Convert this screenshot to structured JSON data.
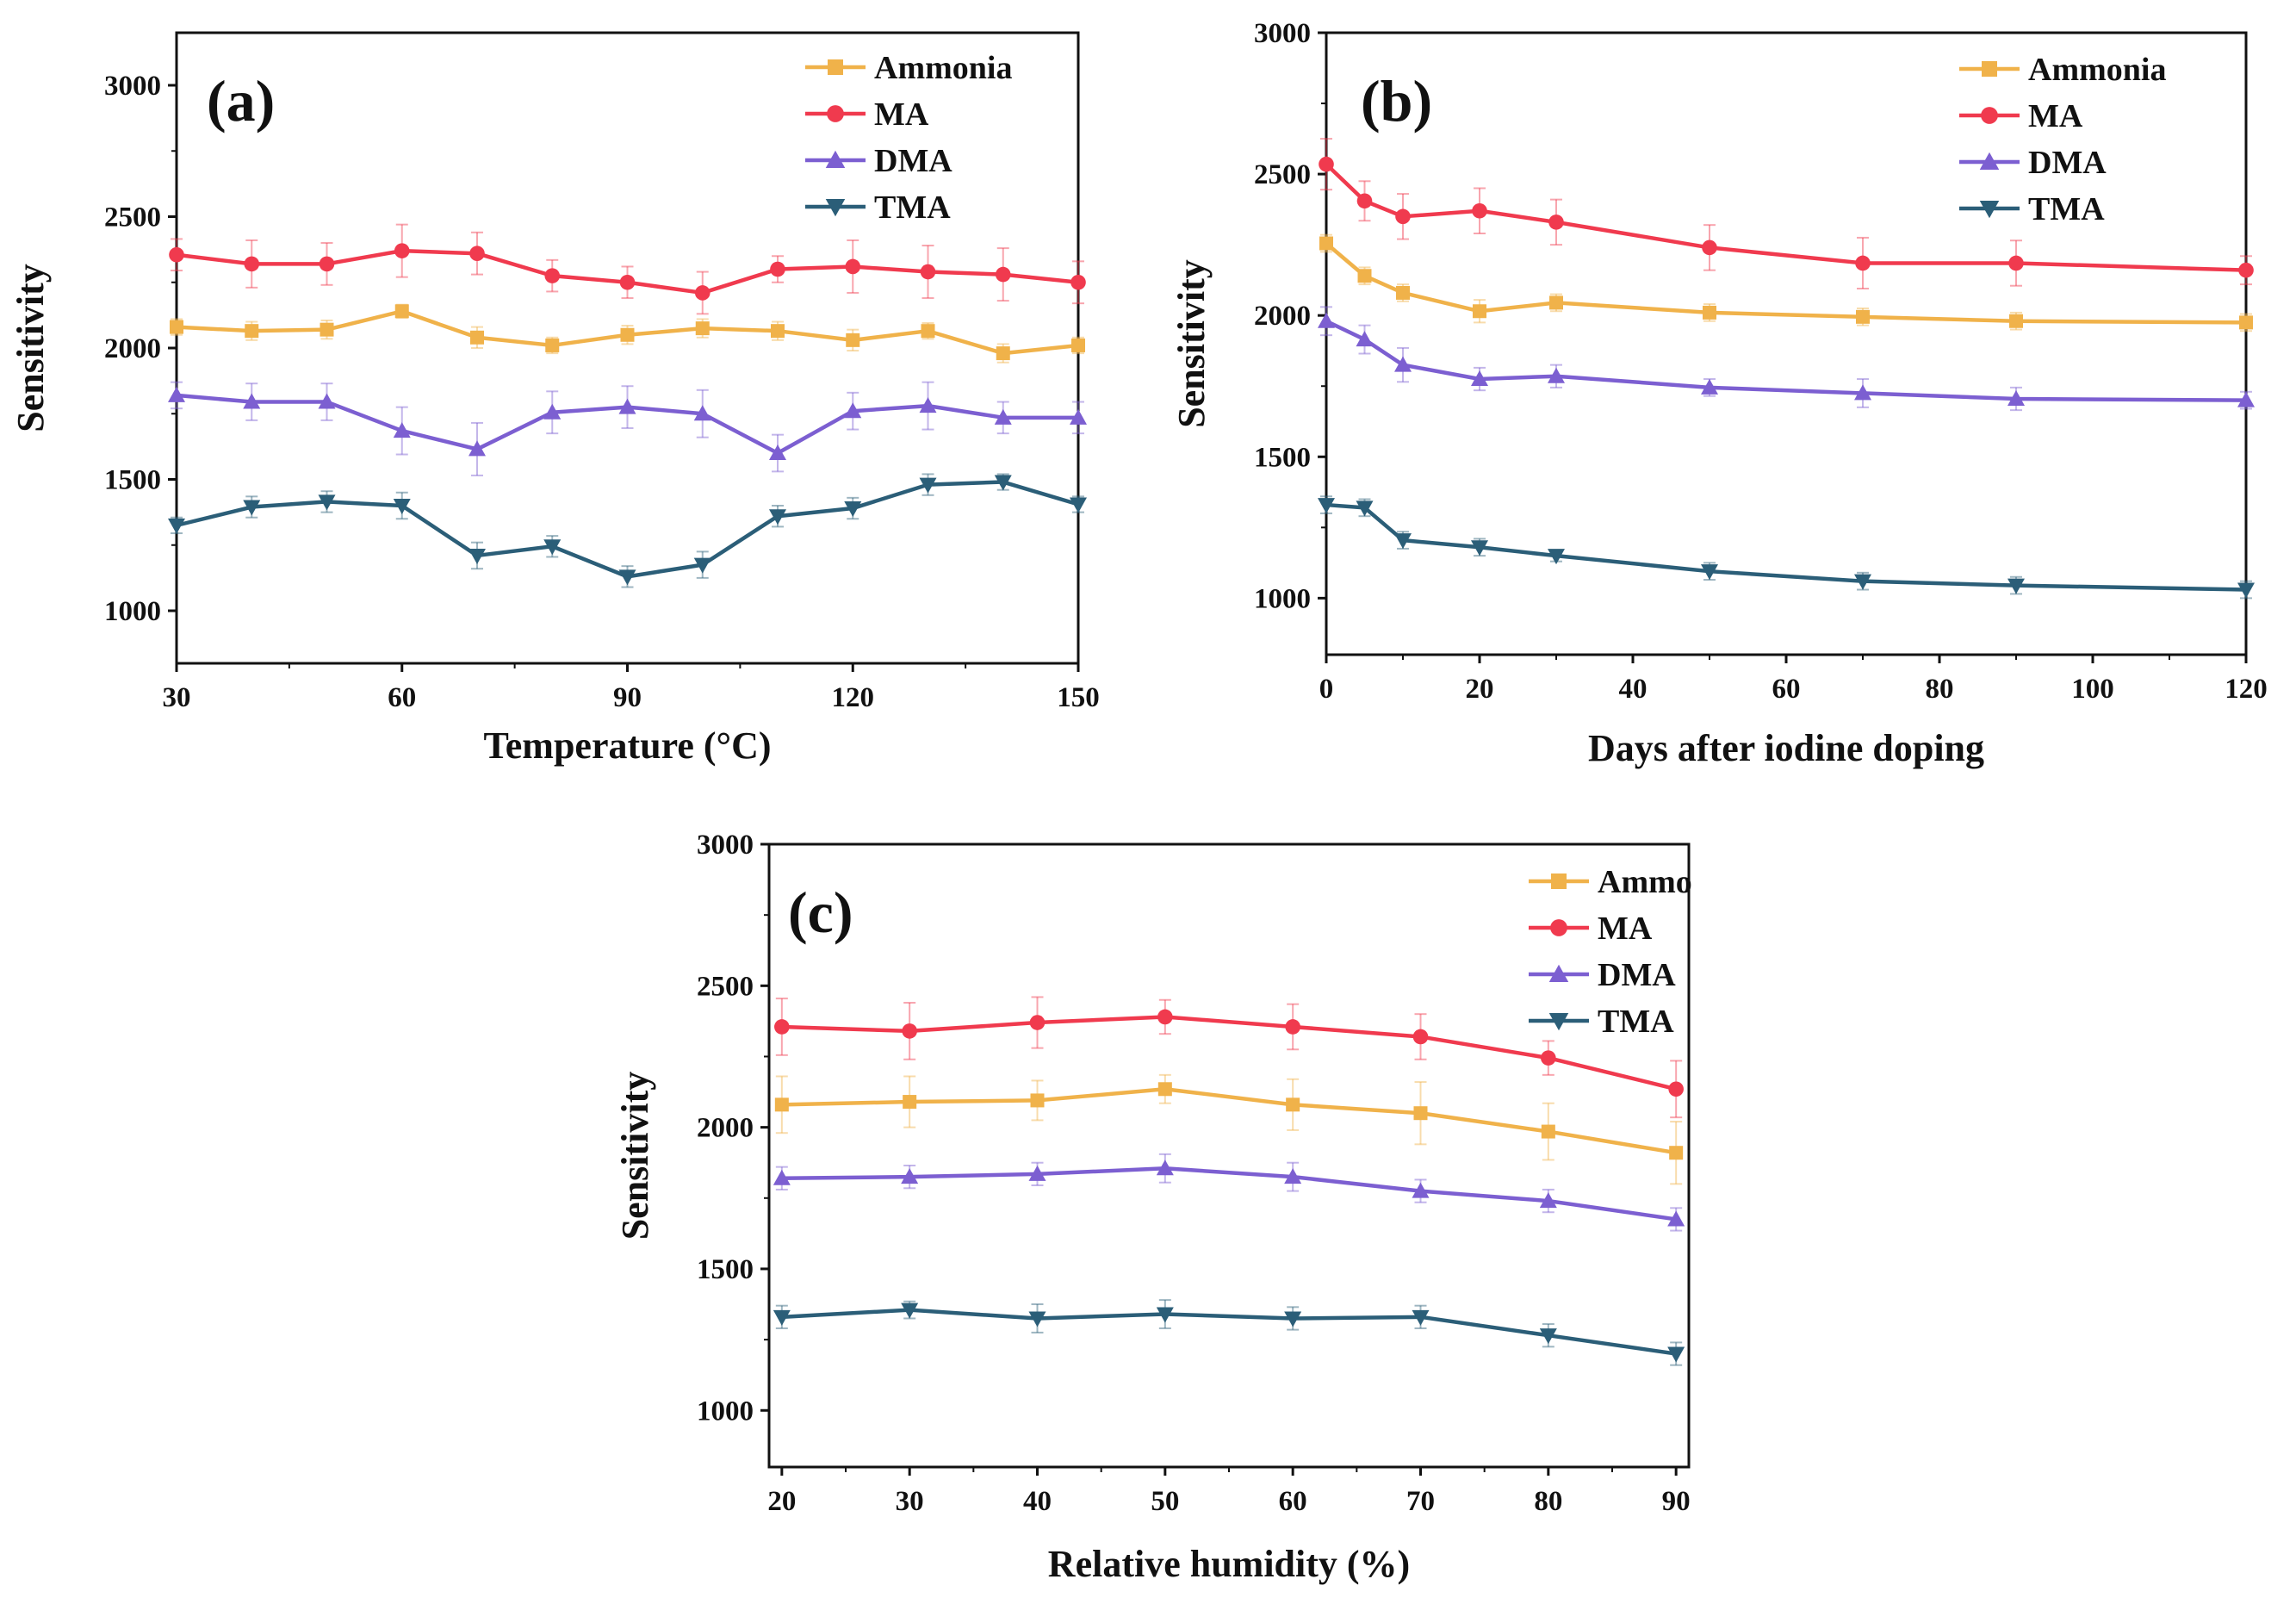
{
  "colors": {
    "Ammonia": "#F0B24A",
    "MA": "#F03A4E",
    "DMA": "#7C5FD1",
    "TMA": "#2B5E78",
    "error_bar_alpha": "0.45"
  },
  "chart_data": [
    {
      "panel_label": "(a)",
      "type": "line",
      "xlabel": "Temperature (°C)",
      "ylabel": "Sensitivity",
      "xlim": [
        30,
        150
      ],
      "ylim": [
        800,
        3200
      ],
      "xticks": [
        30,
        60,
        90,
        120,
        150
      ],
      "yticks": [
        1000,
        1500,
        2000,
        2500,
        3000
      ],
      "x": [
        30,
        40,
        50,
        60,
        70,
        80,
        90,
        100,
        110,
        120,
        130,
        140,
        150
      ],
      "legend_position": "top-right",
      "series": [
        {
          "name": "Ammonia",
          "marker": "square",
          "values": [
            2080,
            2065,
            2070,
            2140,
            2040,
            2010,
            2050,
            2075,
            2065,
            2030,
            2065,
            1980,
            2010
          ],
          "errors": [
            30,
            35,
            35,
            25,
            40,
            30,
            35,
            35,
            35,
            40,
            30,
            35,
            30
          ]
        },
        {
          "name": "MA",
          "marker": "circle",
          "values": [
            2355,
            2320,
            2320,
            2370,
            2360,
            2275,
            2250,
            2210,
            2300,
            2310,
            2290,
            2280,
            2250
          ],
          "errors": [
            60,
            90,
            80,
            100,
            80,
            60,
            60,
            80,
            50,
            100,
            100,
            100,
            80
          ]
        },
        {
          "name": "DMA",
          "marker": "triangle-up",
          "values": [
            1820,
            1795,
            1795,
            1685,
            1615,
            1755,
            1775,
            1750,
            1600,
            1760,
            1780,
            1735,
            1735
          ],
          "errors": [
            50,
            70,
            70,
            90,
            100,
            80,
            80,
            90,
            70,
            70,
            90,
            60,
            60
          ]
        },
        {
          "name": "TMA",
          "marker": "triangle-down",
          "values": [
            1325,
            1395,
            1415,
            1400,
            1210,
            1245,
            1130,
            1175,
            1360,
            1390,
            1480,
            1490,
            1405
          ],
          "errors": [
            30,
            40,
            40,
            50,
            50,
            40,
            40,
            50,
            40,
            40,
            40,
            30,
            30
          ]
        }
      ]
    },
    {
      "panel_label": "(b)",
      "type": "line",
      "xlabel": "Days after iodine doping",
      "ylabel": "Sensitivity",
      "xlim": [
        0,
        120
      ],
      "ylim": [
        800,
        3000
      ],
      "xticks": [
        0,
        20,
        40,
        60,
        80,
        100,
        120
      ],
      "yticks": [
        1000,
        1500,
        2000,
        2500,
        3000
      ],
      "x": [
        0,
        5,
        10,
        20,
        30,
        50,
        70,
        90,
        120
      ],
      "legend_position": "top-right",
      "series": [
        {
          "name": "Ammonia",
          "marker": "square",
          "values": [
            2255,
            2140,
            2080,
            2015,
            2045,
            2010,
            1995,
            1980,
            1975
          ],
          "errors": [
            30,
            30,
            30,
            40,
            30,
            30,
            30,
            30,
            30
          ]
        },
        {
          "name": "MA",
          "marker": "circle",
          "values": [
            2535,
            2405,
            2350,
            2370,
            2330,
            2240,
            2185,
            2185,
            2160
          ],
          "errors": [
            90,
            70,
            80,
            80,
            80,
            80,
            90,
            80,
            50
          ]
        },
        {
          "name": "DMA",
          "marker": "triangle-up",
          "values": [
            1980,
            1915,
            1825,
            1775,
            1785,
            1745,
            1725,
            1705,
            1700
          ],
          "errors": [
            50,
            50,
            60,
            40,
            40,
            30,
            50,
            40,
            30
          ]
        },
        {
          "name": "TMA",
          "marker": "triangle-down",
          "values": [
            1330,
            1320,
            1205,
            1180,
            1150,
            1095,
            1060,
            1045,
            1030
          ],
          "errors": [
            30,
            30,
            30,
            30,
            20,
            30,
            30,
            30,
            30
          ]
        }
      ]
    },
    {
      "panel_label": "(c)",
      "type": "line",
      "xlabel": "Relative humidity (%)",
      "ylabel": "Sensitivity",
      "xlim": [
        19,
        91
      ],
      "ylim": [
        800,
        3000
      ],
      "xticks": [
        20,
        30,
        40,
        50,
        60,
        70,
        80,
        90
      ],
      "yticks": [
        1000,
        1500,
        2000,
        2500,
        3000
      ],
      "x": [
        20,
        30,
        40,
        50,
        60,
        70,
        80,
        90
      ],
      "legend_position": "top-right",
      "series": [
        {
          "name": "Ammo",
          "color_key": "Ammonia",
          "marker": "square",
          "values": [
            2080,
            2090,
            2095,
            2135,
            2080,
            2050,
            1985,
            1910
          ],
          "errors": [
            100,
            90,
            70,
            50,
            90,
            110,
            100,
            110
          ]
        },
        {
          "name": "MA",
          "marker": "circle",
          "values": [
            2355,
            2340,
            2370,
            2390,
            2355,
            2320,
            2245,
            2135
          ],
          "errors": [
            100,
            100,
            90,
            60,
            80,
            80,
            60,
            100
          ]
        },
        {
          "name": "DMA",
          "marker": "triangle-up",
          "values": [
            1820,
            1825,
            1835,
            1855,
            1825,
            1775,
            1740,
            1675
          ],
          "errors": [
            40,
            40,
            40,
            50,
            50,
            40,
            40,
            40
          ]
        },
        {
          "name": "TMA",
          "marker": "triangle-down",
          "values": [
            1330,
            1355,
            1325,
            1340,
            1325,
            1330,
            1265,
            1200
          ],
          "errors": [
            40,
            30,
            50,
            50,
            40,
            40,
            40,
            40
          ]
        }
      ]
    }
  ]
}
